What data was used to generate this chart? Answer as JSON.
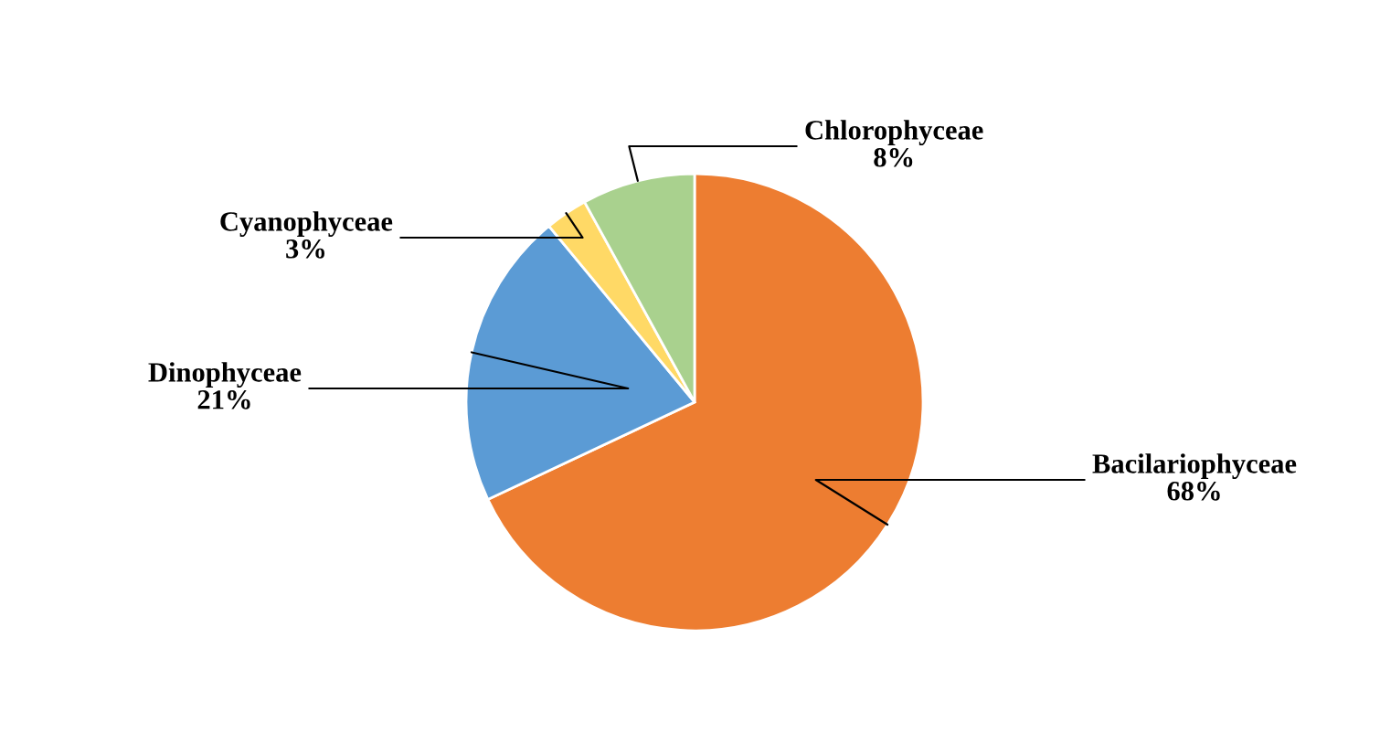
{
  "chart_data": {
    "type": "pie",
    "categories": [
      "Bacilariophyceae",
      "Dinophyceae",
      "Cyanophyceae",
      "Chlorophyceae"
    ],
    "values": [
      68,
      21,
      3,
      8
    ],
    "value_labels": [
      "68%",
      "21%",
      "3%",
      "8%"
    ],
    "colors": [
      "#ed7d31",
      "#5b9bd5",
      "#ffd966",
      "#a9d18e"
    ],
    "legend": false
  }
}
